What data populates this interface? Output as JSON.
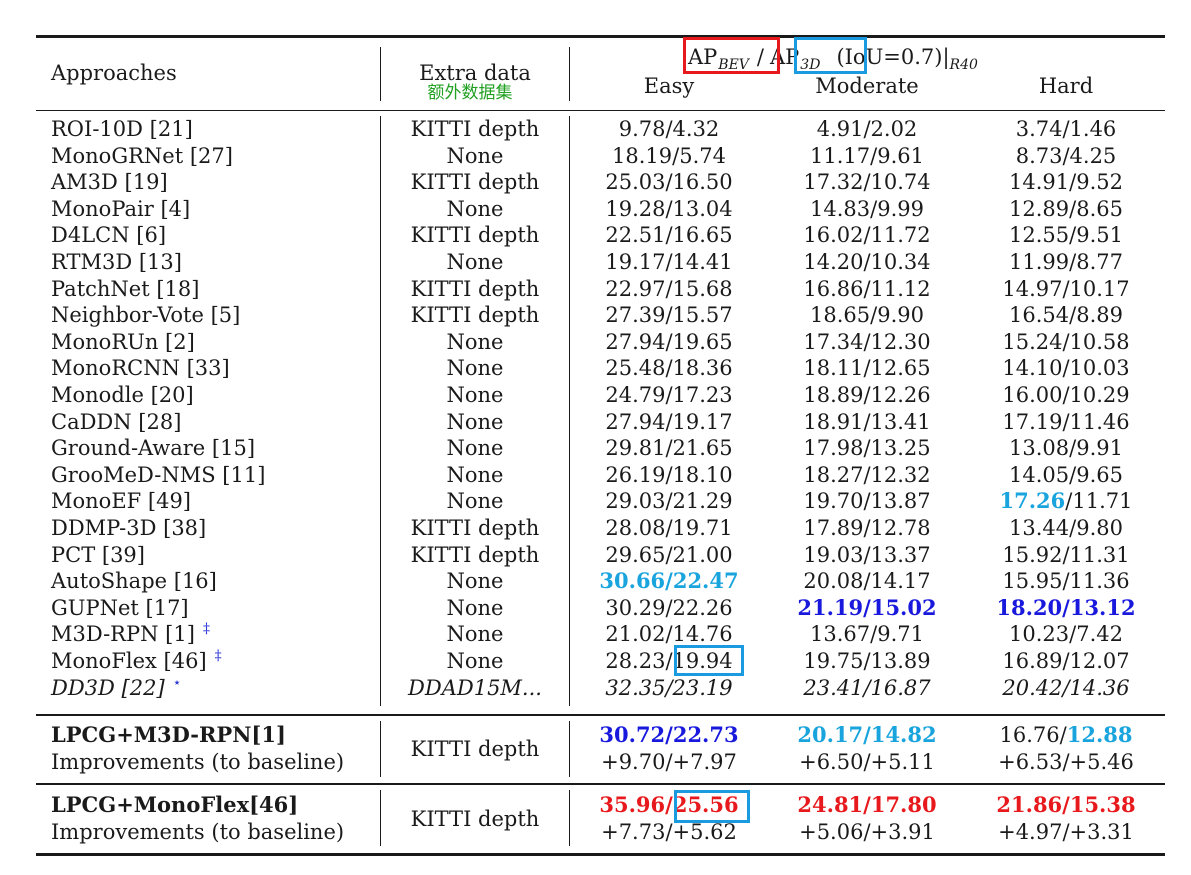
{
  "header": {
    "approaches": "Approaches",
    "extra_data": "Extra data",
    "extra_data_cn": "额外数据集",
    "metric_ap": "AP",
    "metric_bev_sub": "BEV",
    "metric_slash": "/",
    "metric_3d_sub": "3D",
    "metric_iou": "(IoU=0.7)|",
    "metric_r40_sub": "R40",
    "easy": "Easy",
    "moderate": "Moderate",
    "hard": "Hard"
  },
  "rows": [
    {
      "approach": "ROI-10D [21]",
      "extra": "KITTI depth",
      "easy": "9.78/4.32",
      "moderate": "4.91/2.02",
      "hard": "3.74/1.46"
    },
    {
      "approach": "MonoGRNet [27]",
      "extra": "None",
      "easy": "18.19/5.74",
      "moderate": "11.17/9.61",
      "hard": "8.73/4.25"
    },
    {
      "approach": "AM3D [19]",
      "extra": "KITTI depth",
      "easy": "25.03/16.50",
      "moderate": "17.32/10.74",
      "hard": "14.91/9.52"
    },
    {
      "approach": "MonoPair [4]",
      "extra": "None",
      "easy": "19.28/13.04",
      "moderate": "14.83/9.99",
      "hard": "12.89/8.65"
    },
    {
      "approach": "D4LCN [6]",
      "extra": "KITTI depth",
      "easy": "22.51/16.65",
      "moderate": "16.02/11.72",
      "hard": "12.55/9.51"
    },
    {
      "approach": "RTM3D [13]",
      "extra": "None",
      "easy": "19.17/14.41",
      "moderate": "14.20/10.34",
      "hard": "11.99/8.77"
    },
    {
      "approach": "PatchNet [18]",
      "extra": "KITTI depth",
      "easy": "22.97/15.68",
      "moderate": "16.86/11.12",
      "hard": "14.97/10.17"
    },
    {
      "approach": "Neighbor-Vote [5]",
      "extra": "KITTI depth",
      "easy": "27.39/15.57",
      "moderate": "18.65/9.90",
      "hard": "16.54/8.89"
    },
    {
      "approach": "MonoRUn [2]",
      "extra": "None",
      "easy": "27.94/19.65",
      "moderate": "17.34/12.30",
      "hard": "15.24/10.58"
    },
    {
      "approach": "MonoRCNN [33]",
      "extra": "None",
      "easy": "25.48/18.36",
      "moderate": "18.11/12.65",
      "hard": "14.10/10.03"
    },
    {
      "approach": "Monodle [20]",
      "extra": "None",
      "easy": "24.79/17.23",
      "moderate": "18.89/12.26",
      "hard": "16.00/10.29"
    },
    {
      "approach": "CaDDN [28]",
      "extra": "None",
      "easy": "27.94/19.17",
      "moderate": "18.91/13.41",
      "hard": "17.19/11.46"
    },
    {
      "approach": "Ground-Aware [15]",
      "extra": "None",
      "easy": "29.81/21.65",
      "moderate": "17.98/13.25",
      "hard": "13.08/9.91"
    },
    {
      "approach": "GrooMeD-NMS [11]",
      "extra": "None",
      "easy": "26.19/18.10",
      "moderate": "18.27/12.32",
      "hard": "14.05/9.65"
    },
    {
      "approach": "MonoEF [49]",
      "extra": "None",
      "easy": "29.03/21.29",
      "moderate": "19.70/13.87",
      "hard_a": "17.26",
      "hard_b": "/11.71"
    },
    {
      "approach": "DDMP-3D [38]",
      "extra": "KITTI depth",
      "easy": "28.08/19.71",
      "moderate": "17.89/12.78",
      "hard": "13.44/9.80"
    },
    {
      "approach": "PCT [39]",
      "extra": "KITTI depth",
      "easy": "29.65/21.00",
      "moderate": "19.03/13.37",
      "hard": "15.92/11.31"
    },
    {
      "approach": "AutoShape [16]",
      "extra": "None",
      "easy": "30.66/22.47",
      "moderate": "20.08/14.17",
      "hard": "15.95/11.36"
    },
    {
      "approach": "GUPNet [17]",
      "extra": "None",
      "easy": "30.29/22.26",
      "moderate": "21.19/15.02",
      "hard": "18.20/13.12"
    },
    {
      "approach": "M3D-RPN [1]",
      "dagger": "‡",
      "extra": "None",
      "easy": "21.02/14.76",
      "moderate": "13.67/9.71",
      "hard": "10.23/7.42"
    },
    {
      "approach": "MonoFlex [46]",
      "dagger": "‡",
      "extra": "None",
      "easy_a": "28.23/",
      "easy_b": "19.94",
      "moderate": "19.75/13.89",
      "hard": "16.89/12.07"
    },
    {
      "approach": "DD3D [22]",
      "star": "⋆",
      "extra": "DDAD15M...",
      "easy": "32.35/23.19",
      "moderate": "23.41/16.87",
      "hard": "20.42/14.36"
    }
  ],
  "block1": {
    "name": "LPCG+M3D-RPN[1]",
    "sub": "Improvements (to baseline)",
    "extra": "KITTI depth",
    "easy": "30.72/22.73",
    "moderate": "20.17/14.82",
    "hard_a": "16.76/",
    "hard_b": "12.88",
    "imp_easy": "+9.70/+7.97",
    "imp_moderate": "+6.50/+5.11",
    "imp_hard": "+6.53/+5.46"
  },
  "block2": {
    "name": "LPCG+MonoFlex[46]",
    "sub": "Improvements (to baseline)",
    "extra": "KITTI depth",
    "easy_a": "35.96/",
    "easy_b": "25.56",
    "moderate": "24.81/17.80",
    "hard": "21.86/15.38",
    "imp_easy": "+7.73/+5.62",
    "imp_moderate": "+5.06/+3.91",
    "imp_hard": "+4.97/+3.31"
  },
  "colors": {
    "red": "#e8191c",
    "blue": "#1919dd",
    "cyan": "#1aa4dd",
    "green": "#22a022"
  }
}
